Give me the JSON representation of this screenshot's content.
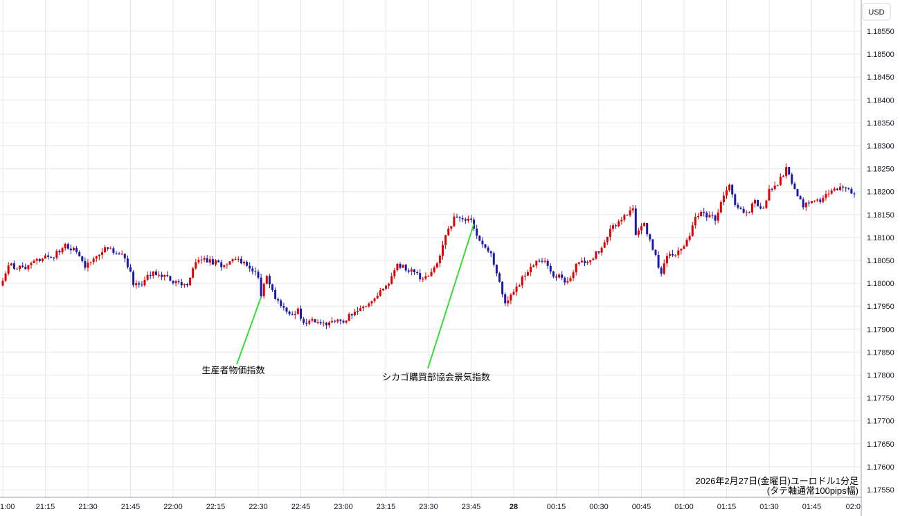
{
  "chart_data": {
    "type": "candlestick",
    "currency": "USD",
    "caption_line1": "2026年2月27日(金曜日)ユーロドル1分足",
    "caption_line2": "(タテ軸通常100pips幅)",
    "colors": {
      "up": "#e00000",
      "down": "#1a1aa8",
      "grid": "#e3e8ee",
      "annotation_line": "#33dd33"
    },
    "ylim": [
      1.1753,
      1.1861
    ],
    "y_ticks": [
      "1.18550",
      "1.18500",
      "1.18450",
      "1.18400",
      "1.18350",
      "1.18300",
      "1.18250",
      "1.18200",
      "1.18150",
      "1.18100",
      "1.18050",
      "1.18000",
      "1.17950",
      "1.17900",
      "1.17850",
      "1.17800",
      "1.17750",
      "1.17700",
      "1.17650",
      "1.17600",
      "1.17550"
    ],
    "x_ticks": [
      {
        "label": "1:00",
        "minute": 0
      },
      {
        "label": "21:15",
        "minute": 15
      },
      {
        "label": "21:30",
        "minute": 30
      },
      {
        "label": "21:45",
        "minute": 45
      },
      {
        "label": "22:00",
        "minute": 60
      },
      {
        "label": "22:15",
        "minute": 75
      },
      {
        "label": "22:30",
        "minute": 90
      },
      {
        "label": "22:45",
        "minute": 105
      },
      {
        "label": "23:00",
        "minute": 120
      },
      {
        "label": "23:15",
        "minute": 135
      },
      {
        "label": "23:30",
        "minute": 150
      },
      {
        "label": "23:45",
        "minute": 165
      },
      {
        "label": "28",
        "minute": 180,
        "bold": true
      },
      {
        "label": "00:15",
        "minute": 195
      },
      {
        "label": "00:30",
        "minute": 210
      },
      {
        "label": "00:45",
        "minute": 225
      },
      {
        "label": "01:00",
        "minute": 240
      },
      {
        "label": "01:15",
        "minute": 255
      },
      {
        "label": "01:30",
        "minute": 270
      },
      {
        "label": "01:45",
        "minute": 285
      },
      {
        "label": "02:0",
        "minute": 300
      }
    ],
    "annotations": [
      {
        "text": "生産者物価指数",
        "minute": 91,
        "price": 1.1797
      },
      {
        "text": "シカゴ購買部協会景気指数",
        "minute": 166,
        "price": 1.1813
      }
    ],
    "keypoints": [
      [
        0,
        1.18
      ],
      [
        2,
        1.1804
      ],
      [
        8,
        1.1803
      ],
      [
        12,
        1.1805
      ],
      [
        18,
        1.1806
      ],
      [
        22,
        1.1808
      ],
      [
        26,
        1.1807
      ],
      [
        29,
        1.1804
      ],
      [
        33,
        1.1806
      ],
      [
        36,
        1.1808
      ],
      [
        40,
        1.1807
      ],
      [
        43,
        1.1806
      ],
      [
        46,
        1.18
      ],
      [
        49,
        1.18
      ],
      [
        52,
        1.1802
      ],
      [
        57,
        1.1802
      ],
      [
        60,
        1.18
      ],
      [
        63,
        1.18
      ],
      [
        65,
        1.18
      ],
      [
        68,
        1.1805
      ],
      [
        72,
        1.1805
      ],
      [
        77,
        1.1804
      ],
      [
        82,
        1.1805
      ],
      [
        86,
        1.1804
      ],
      [
        88,
        1.1803
      ],
      [
        90,
        1.1801
      ],
      [
        91,
        1.1797
      ],
      [
        93,
        1.1802
      ],
      [
        95,
        1.1798
      ],
      [
        98,
        1.1795
      ],
      [
        101,
        1.1793
      ],
      [
        104,
        1.1794
      ],
      [
        106,
        1.1791
      ],
      [
        110,
        1.1792
      ],
      [
        114,
        1.1791
      ],
      [
        118,
        1.1792
      ],
      [
        120,
        1.1791
      ],
      [
        122,
        1.1793
      ],
      [
        126,
        1.1795
      ],
      [
        129,
        1.1795
      ],
      [
        133,
        1.1798
      ],
      [
        136,
        1.18
      ],
      [
        139,
        1.1804
      ],
      [
        143,
        1.1803
      ],
      [
        148,
        1.1801
      ],
      [
        152,
        1.1803
      ],
      [
        155,
        1.1808
      ],
      [
        157,
        1.1812
      ],
      [
        159,
        1.1814
      ],
      [
        162,
        1.1814
      ],
      [
        165,
        1.1814
      ],
      [
        167,
        1.181
      ],
      [
        170,
        1.1808
      ],
      [
        172,
        1.1806
      ],
      [
        175,
        1.18
      ],
      [
        177,
        1.1796
      ],
      [
        181,
        1.1799
      ],
      [
        184,
        1.1802
      ],
      [
        188,
        1.1805
      ],
      [
        191,
        1.1805
      ],
      [
        194,
        1.1802
      ],
      [
        197,
        1.1801
      ],
      [
        199,
        1.18
      ],
      [
        202,
        1.1804
      ],
      [
        207,
        1.1805
      ],
      [
        211,
        1.1808
      ],
      [
        214,
        1.1812
      ],
      [
        217,
        1.1813
      ],
      [
        219,
        1.1815
      ],
      [
        222,
        1.1816
      ],
      [
        223,
        1.1811
      ],
      [
        226,
        1.1813
      ],
      [
        228,
        1.1809
      ],
      [
        230,
        1.1806
      ],
      [
        232,
        1.1802
      ],
      [
        234,
        1.1806
      ],
      [
        237,
        1.1806
      ],
      [
        240,
        1.1808
      ],
      [
        242,
        1.181
      ],
      [
        244,
        1.1815
      ],
      [
        248,
        1.1815
      ],
      [
        251,
        1.1814
      ],
      [
        253,
        1.1818
      ],
      [
        256,
        1.1821
      ],
      [
        259,
        1.1816
      ],
      [
        263,
        1.1816
      ],
      [
        265,
        1.1818
      ],
      [
        268,
        1.1816
      ],
      [
        270,
        1.182
      ],
      [
        273,
        1.1822
      ],
      [
        276,
        1.1825
      ],
      [
        279,
        1.182
      ],
      [
        282,
        1.1817
      ],
      [
        285,
        1.1818
      ],
      [
        288,
        1.1818
      ],
      [
        291,
        1.182
      ],
      [
        296,
        1.1821
      ],
      [
        299,
        1.182
      ]
    ]
  }
}
